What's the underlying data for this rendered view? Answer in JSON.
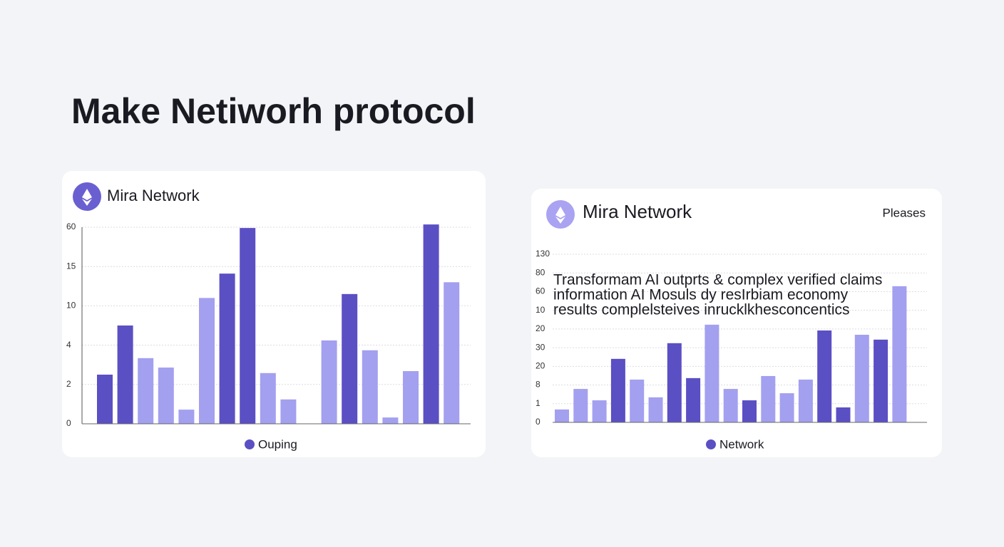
{
  "heading": "Make Netiworh protocol",
  "chart_data": [
    {
      "type": "bar",
      "title": "Mira Network",
      "categories": [
        null,
        null,
        null,
        null,
        null,
        null,
        null,
        null,
        null,
        null,
        null,
        null,
        null,
        null,
        null,
        null,
        null,
        null
      ],
      "series": [
        {
          "name": "Ouping",
          "color": "#5b4fc4",
          "values": [
            1.25,
            2.5,
            1.67,
            1.43,
            0.36,
            3.2,
            3.82,
            4.98,
            1.29,
            0.62,
            null,
            2.12,
            3.3,
            1.87,
            0.16,
            1.34,
            5.07,
            3.6
          ],
          "bar_colors": [
            "#5b4fc4",
            "#5b4fc4",
            "#a3a0f0",
            "#a3a0f0",
            "#a3a0f0",
            "#a3a0f0",
            "#5b4fc4",
            "#5b4fc4",
            "#a3a0f0",
            "#a3a0f0",
            null,
            "#a3a0f0",
            "#5b4fc4",
            "#a3a0f0",
            "#a3a0f0",
            "#a3a0f0",
            "#5b4fc4",
            "#a3a0f0"
          ]
        }
      ],
      "ylim": [
        0,
        5
      ],
      "yticks": [
        0,
        {
          "value": 1,
          "label": "2"
        },
        {
          "value": 2,
          "label": "4"
        },
        {
          "value": 3,
          "label": "10"
        },
        {
          "value": 4,
          "label": "15"
        },
        {
          "value": 5,
          "label": "60"
        }
      ],
      "grid": true
    },
    {
      "type": "bar",
      "title": "Mira Network",
      "subtitle": "Pleases",
      "annotations": [
        "Transformam AI outprts  & complex  verified claims",
        "information AI Mosuls dy resIrbiam economy",
        "results complelsteives inrucklkhesconcentics"
      ],
      "categories": [
        null,
        null,
        null,
        null,
        null,
        null,
        null,
        null,
        null,
        null,
        null,
        null,
        null,
        null,
        null,
        null,
        null,
        null,
        null
      ],
      "series": [
        {
          "name": "Network",
          "color": "#5b4fc4",
          "values": [
            0.69,
            1.79,
            1.18,
            3.4,
            2.29,
            1.34,
            4.24,
            2.37,
            5.23,
            1.79,
            1.18,
            2.48,
            1.56,
            2.29,
            4.92,
            0.8,
            4.69,
            4.43,
            7.29
          ],
          "bar_colors": [
            "#a3a0f0",
            "#a3a0f0",
            "#a3a0f0",
            "#5b4fc4",
            "#a3a0f0",
            "#a3a0f0",
            "#5b4fc4",
            "#5b4fc4",
            "#a3a0f0",
            "#a3a0f0",
            "#5b4fc4",
            "#a3a0f0",
            "#a3a0f0",
            "#a3a0f0",
            "#5b4fc4",
            "#5b4fc4",
            "#a3a0f0",
            "#5b4fc4",
            "#a3a0f0"
          ]
        }
      ],
      "ylim": [
        0,
        9
      ],
      "yticks": [
        0,
        1,
        {
          "value": 2,
          "label": "8"
        },
        {
          "value": 3,
          "label": "20"
        },
        {
          "value": 4,
          "label": "30"
        },
        {
          "value": 5,
          "label": "20"
        },
        {
          "value": 6,
          "label": "10"
        },
        {
          "value": 7,
          "label": "60"
        },
        {
          "value": 8,
          "label": "80"
        },
        {
          "value": 9,
          "label": "130"
        }
      ],
      "grid": true
    }
  ]
}
